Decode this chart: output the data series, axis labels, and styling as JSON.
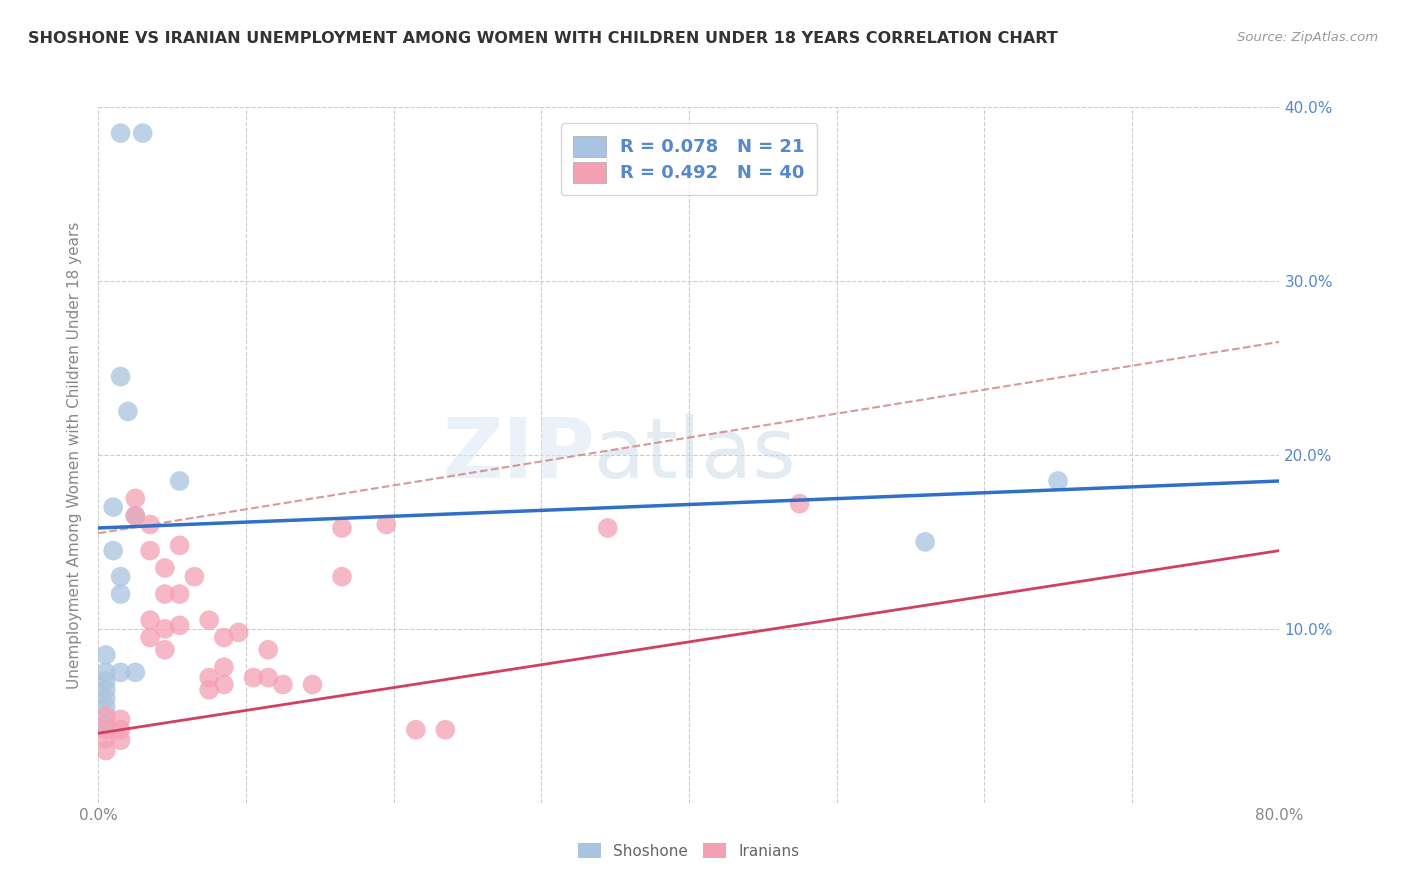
{
  "title": "SHOSHONE VS IRANIAN UNEMPLOYMENT AMONG WOMEN WITH CHILDREN UNDER 18 YEARS CORRELATION CHART",
  "source": "Source: ZipAtlas.com",
  "ylabel": "Unemployment Among Women with Children Under 18 years",
  "xlim": [
    0,
    0.8
  ],
  "ylim": [
    0,
    0.4
  ],
  "xticks": [
    0.0,
    0.1,
    0.2,
    0.3,
    0.4,
    0.5,
    0.6,
    0.7,
    0.8
  ],
  "xticklabels_show": [
    "0.0%",
    "",
    "",
    "",
    "",
    "",
    "",
    "",
    "80.0%"
  ],
  "yticks": [
    0.0,
    0.1,
    0.2,
    0.3,
    0.4
  ],
  "yticklabels_right": [
    "",
    "10.0%",
    "20.0%",
    "30.0%",
    "40.0%"
  ],
  "shoshone_R": 0.078,
  "shoshone_N": 21,
  "iranian_R": 0.492,
  "iranian_N": 40,
  "shoshone_color": "#a8c4e0",
  "iranian_color": "#f4a0b4",
  "shoshone_line_color": "#3070c8",
  "iranian_line_color": "#d04060",
  "dashed_line_color": "#d08080",
  "background_color": "#ffffff",
  "grid_color": "#cccccc",
  "watermark_zip": "ZIP",
  "watermark_atlas": "atlas",
  "axis_label_color": "#5588cc",
  "shoshone_points": [
    [
      0.015,
      0.385
    ],
    [
      0.03,
      0.385
    ],
    [
      0.015,
      0.245
    ],
    [
      0.02,
      0.225
    ],
    [
      0.055,
      0.185
    ],
    [
      0.01,
      0.17
    ],
    [
      0.025,
      0.165
    ],
    [
      0.01,
      0.145
    ],
    [
      0.015,
      0.13
    ],
    [
      0.015,
      0.12
    ],
    [
      0.005,
      0.085
    ],
    [
      0.005,
      0.075
    ],
    [
      0.015,
      0.075
    ],
    [
      0.025,
      0.075
    ],
    [
      0.005,
      0.07
    ],
    [
      0.005,
      0.065
    ],
    [
      0.005,
      0.06
    ],
    [
      0.005,
      0.055
    ],
    [
      0.005,
      0.045
    ],
    [
      0.65,
      0.185
    ],
    [
      0.56,
      0.15
    ]
  ],
  "iranian_points": [
    [
      0.005,
      0.05
    ],
    [
      0.005,
      0.042
    ],
    [
      0.005,
      0.037
    ],
    [
      0.005,
      0.03
    ],
    [
      0.015,
      0.048
    ],
    [
      0.015,
      0.042
    ],
    [
      0.015,
      0.036
    ],
    [
      0.025,
      0.175
    ],
    [
      0.025,
      0.165
    ],
    [
      0.035,
      0.16
    ],
    [
      0.035,
      0.145
    ],
    [
      0.035,
      0.105
    ],
    [
      0.035,
      0.095
    ],
    [
      0.045,
      0.135
    ],
    [
      0.045,
      0.12
    ],
    [
      0.045,
      0.1
    ],
    [
      0.045,
      0.088
    ],
    [
      0.055,
      0.148
    ],
    [
      0.055,
      0.12
    ],
    [
      0.055,
      0.102
    ],
    [
      0.065,
      0.13
    ],
    [
      0.075,
      0.105
    ],
    [
      0.075,
      0.072
    ],
    [
      0.075,
      0.065
    ],
    [
      0.085,
      0.095
    ],
    [
      0.085,
      0.078
    ],
    [
      0.085,
      0.068
    ],
    [
      0.095,
      0.098
    ],
    [
      0.105,
      0.072
    ],
    [
      0.115,
      0.088
    ],
    [
      0.115,
      0.072
    ],
    [
      0.125,
      0.068
    ],
    [
      0.145,
      0.068
    ],
    [
      0.165,
      0.158
    ],
    [
      0.165,
      0.13
    ],
    [
      0.195,
      0.16
    ],
    [
      0.215,
      0.042
    ],
    [
      0.235,
      0.042
    ],
    [
      0.345,
      0.158
    ],
    [
      0.475,
      0.172
    ]
  ],
  "shoshone_line": [
    0.0,
    0.8,
    0.158,
    0.185
  ],
  "iranian_line": [
    0.0,
    0.8,
    0.04,
    0.145
  ],
  "dashed_line": [
    0.0,
    0.8,
    0.155,
    0.265
  ]
}
